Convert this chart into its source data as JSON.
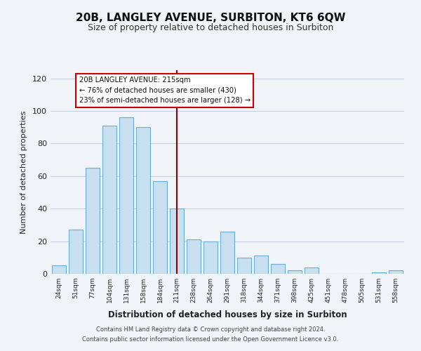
{
  "title": "20B, LANGLEY AVENUE, SURBITON, KT6 6QW",
  "subtitle": "Size of property relative to detached houses in Surbiton",
  "xlabel": "Distribution of detached houses by size in Surbiton",
  "ylabel": "Number of detached properties",
  "footer_lines": [
    "Contains HM Land Registry data © Crown copyright and database right 2024.",
    "Contains public sector information licensed under the Open Government Licence v3.0."
  ],
  "categories": [
    "24sqm",
    "51sqm",
    "77sqm",
    "104sqm",
    "131sqm",
    "158sqm",
    "184sqm",
    "211sqm",
    "238sqm",
    "264sqm",
    "291sqm",
    "318sqm",
    "344sqm",
    "371sqm",
    "398sqm",
    "425sqm",
    "451sqm",
    "478sqm",
    "505sqm",
    "531sqm",
    "558sqm"
  ],
  "values": [
    5,
    27,
    65,
    91,
    96,
    90,
    57,
    40,
    21,
    20,
    26,
    10,
    11,
    6,
    2,
    4,
    0,
    0,
    0,
    1,
    2
  ],
  "bar_color": "#c8dff0",
  "bar_edge_color": "#6aaed6",
  "highlight_index": 7,
  "highlight_color": "#8b0000",
  "annotation_title": "20B LANGLEY AVENUE: 215sqm",
  "annotation_line1": "← 76% of detached houses are smaller (430)",
  "annotation_line2": "23% of semi-detached houses are larger (128) →",
  "annotation_box_color": "#ffffff",
  "annotation_box_edge_color": "#cc0000",
  "ylim": [
    0,
    125
  ],
  "background_color": "#f0f4f8"
}
